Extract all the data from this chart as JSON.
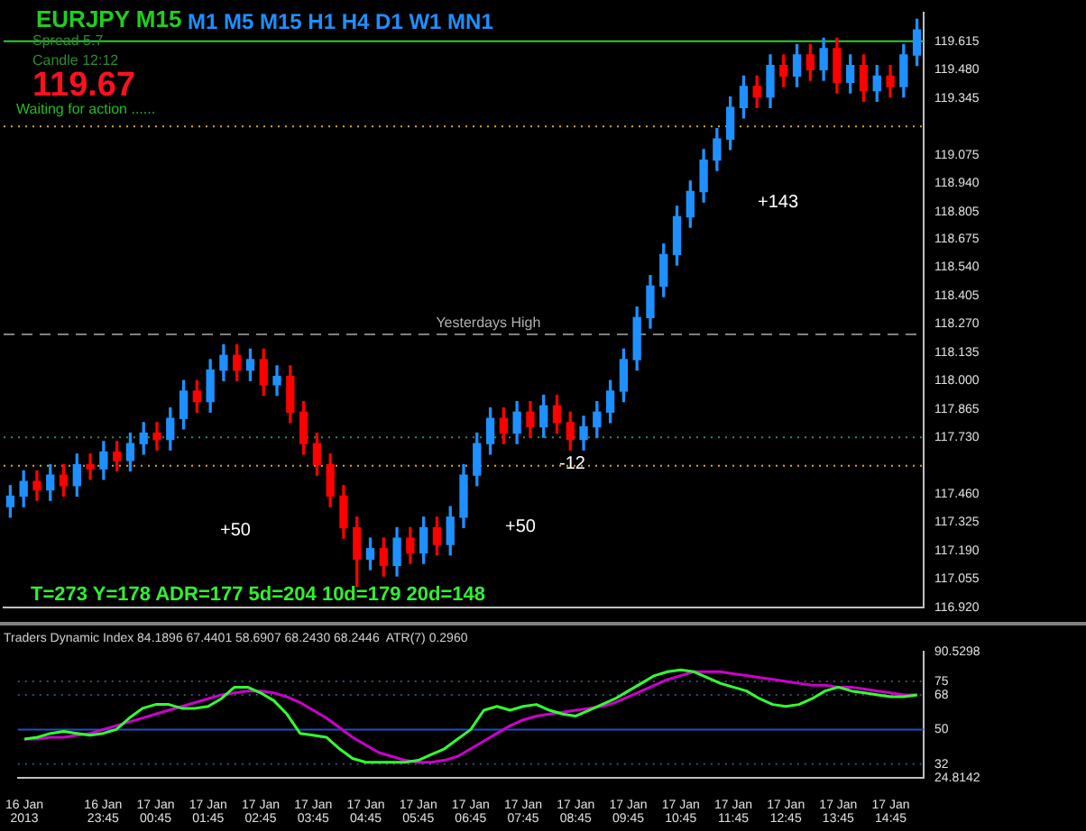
{
  "chart_data": [
    {
      "type": "candlestick",
      "title": "EURJPY  M15",
      "categories": [
        null,
        null,
        null,
        null,
        null,
        null,
        null,
        null,
        null,
        null,
        null,
        null,
        null,
        null,
        null,
        null,
        null,
        null,
        null,
        null,
        null,
        null,
        null,
        null,
        null,
        null,
        null,
        null,
        null,
        null,
        null,
        null,
        null,
        null,
        null,
        null,
        null,
        null,
        null,
        null,
        null,
        null,
        null,
        null,
        null,
        null,
        null,
        null,
        null,
        null,
        null,
        null,
        null,
        null,
        null,
        null,
        null,
        null,
        null,
        null,
        null,
        null,
        null,
        null,
        null,
        null,
        null,
        null,
        null
      ],
      "ohlc": [
        [
          117.4,
          117.5,
          117.35,
          117.45
        ],
        [
          117.45,
          117.57,
          117.4,
          117.52
        ],
        [
          117.52,
          117.57,
          117.43,
          117.48
        ],
        [
          117.48,
          117.6,
          117.43,
          117.55
        ],
        [
          117.55,
          117.6,
          117.45,
          117.5
        ],
        [
          117.5,
          117.65,
          117.45,
          117.6
        ],
        [
          117.6,
          117.65,
          117.53,
          117.58
        ],
        [
          117.58,
          117.71,
          117.53,
          117.66
        ],
        [
          117.66,
          117.71,
          117.57,
          117.62
        ],
        [
          117.62,
          117.75,
          117.57,
          117.7
        ],
        [
          117.7,
          117.8,
          117.65,
          117.75
        ],
        [
          117.75,
          117.8,
          117.67,
          117.72
        ],
        [
          117.72,
          117.87,
          117.67,
          117.82
        ],
        [
          117.82,
          118.0,
          117.77,
          117.95
        ],
        [
          117.95,
          118.0,
          117.85,
          117.9
        ],
        [
          117.9,
          118.1,
          117.85,
          118.05
        ],
        [
          118.05,
          118.17,
          118.0,
          118.12
        ],
        [
          118.12,
          118.17,
          118.0,
          118.05
        ],
        [
          118.05,
          118.15,
          118.0,
          118.1
        ],
        [
          118.1,
          118.15,
          117.93,
          117.98
        ],
        [
          117.98,
          118.07,
          117.93,
          118.02
        ],
        [
          118.02,
          118.07,
          117.8,
          117.85
        ],
        [
          117.85,
          117.9,
          117.65,
          117.7
        ],
        [
          117.7,
          117.75,
          117.55,
          117.6
        ],
        [
          117.6,
          117.65,
          117.4,
          117.45
        ],
        [
          117.45,
          117.5,
          117.25,
          117.3
        ],
        [
          117.3,
          117.35,
          117.02,
          117.15
        ],
        [
          117.15,
          117.25,
          117.1,
          117.2
        ],
        [
          117.2,
          117.25,
          117.07,
          117.12
        ],
        [
          117.12,
          117.3,
          117.07,
          117.25
        ],
        [
          117.25,
          117.3,
          117.13,
          117.18
        ],
        [
          117.18,
          117.35,
          117.13,
          117.3
        ],
        [
          117.3,
          117.35,
          117.17,
          117.22
        ],
        [
          117.22,
          117.4,
          117.17,
          117.35
        ],
        [
          117.35,
          117.6,
          117.3,
          117.55
        ],
        [
          117.55,
          117.75,
          117.5,
          117.7
        ],
        [
          117.7,
          117.87,
          117.65,
          117.82
        ],
        [
          117.82,
          117.87,
          117.7,
          117.75
        ],
        [
          117.75,
          117.9,
          117.7,
          117.85
        ],
        [
          117.85,
          117.9,
          117.73,
          117.78
        ],
        [
          117.78,
          117.93,
          117.73,
          117.88
        ],
        [
          117.88,
          117.93,
          117.75,
          117.8
        ],
        [
          117.8,
          117.85,
          117.67,
          117.72
        ],
        [
          117.72,
          117.83,
          117.67,
          117.78
        ],
        [
          117.78,
          117.9,
          117.73,
          117.85
        ],
        [
          117.85,
          118.0,
          117.8,
          117.95
        ],
        [
          117.95,
          118.15,
          117.9,
          118.1
        ],
        [
          118.1,
          118.35,
          118.05,
          118.3
        ],
        [
          118.3,
          118.5,
          118.25,
          118.45
        ],
        [
          118.45,
          118.65,
          118.4,
          118.6
        ],
        [
          118.6,
          118.83,
          118.55,
          118.78
        ],
        [
          118.78,
          118.95,
          118.73,
          118.9
        ],
        [
          118.9,
          119.1,
          118.85,
          119.05
        ],
        [
          119.05,
          119.2,
          119.0,
          119.15
        ],
        [
          119.15,
          119.35,
          119.1,
          119.3
        ],
        [
          119.3,
          119.45,
          119.25,
          119.4
        ],
        [
          119.4,
          119.45,
          119.3,
          119.35
        ],
        [
          119.35,
          119.55,
          119.3,
          119.5
        ],
        [
          119.5,
          119.55,
          119.4,
          119.45
        ],
        [
          119.45,
          119.6,
          119.4,
          119.55
        ],
        [
          119.55,
          119.6,
          119.43,
          119.48
        ],
        [
          119.48,
          119.63,
          119.43,
          119.58
        ],
        [
          119.58,
          119.63,
          119.37,
          119.42
        ],
        [
          119.42,
          119.55,
          119.37,
          119.5
        ],
        [
          119.5,
          119.55,
          119.33,
          119.38
        ],
        [
          119.38,
          119.5,
          119.33,
          119.45
        ],
        [
          119.45,
          119.5,
          119.35,
          119.4
        ],
        [
          119.4,
          119.6,
          119.35,
          119.55
        ],
        [
          119.55,
          119.72,
          119.5,
          119.67
        ]
      ],
      "colors": [
        "#1e90ff",
        "#1e90ff",
        "#ff0000",
        "#1e90ff",
        "#ff0000",
        "#1e90ff",
        "#ff0000",
        "#1e90ff",
        "#ff0000",
        "#1e90ff",
        "#1e90ff",
        "#ff0000",
        "#1e90ff",
        "#1e90ff",
        "#ff0000",
        "#1e90ff",
        "#1e90ff",
        "#ff0000",
        "#1e90ff",
        "#ff0000",
        "#1e90ff",
        "#ff0000",
        "#ff0000",
        "#ff0000",
        "#ff0000",
        "#ff0000",
        "#ff0000",
        "#1e90ff",
        "#ff0000",
        "#1e90ff",
        "#ff0000",
        "#1e90ff",
        "#ff0000",
        "#1e90ff",
        "#1e90ff",
        "#1e90ff",
        "#1e90ff",
        "#ff0000",
        "#1e90ff",
        "#ff0000",
        "#1e90ff",
        "#ff0000",
        "#ff0000",
        "#1e90ff",
        "#1e90ff",
        "#1e90ff",
        "#1e90ff",
        "#1e90ff",
        "#1e90ff",
        "#1e90ff",
        "#1e90ff",
        "#1e90ff",
        "#1e90ff",
        "#1e90ff",
        "#1e90ff",
        "#1e90ff",
        "#ff0000",
        "#1e90ff",
        "#ff0000",
        "#1e90ff",
        "#ff0000",
        "#1e90ff",
        "#ff0000",
        "#1e90ff",
        "#ff0000",
        "#1e90ff",
        "#ff0000",
        "#1e90ff",
        "#1e90ff"
      ],
      "ylim": [
        116.92,
        119.75
      ],
      "yticks": [
        {
          "value": 116.92,
          "label": "116.920"
        },
        {
          "value": 117.055,
          "label": "117.055"
        },
        {
          "value": 117.19,
          "label": "117.190"
        },
        {
          "value": 117.325,
          "label": "117.325"
        },
        {
          "value": 117.46,
          "label": "117.460"
        },
        {
          "value": 117.73,
          "label": "117.730"
        },
        {
          "value": 117.865,
          "label": "117.865"
        },
        {
          "value": 118.0,
          "label": "118.000"
        },
        {
          "value": 118.135,
          "label": "118.135"
        },
        {
          "value": 118.27,
          "label": "118.270"
        },
        {
          "value": 118.405,
          "label": "118.405"
        },
        {
          "value": 118.54,
          "label": "118.540"
        },
        {
          "value": 118.675,
          "label": "118.675"
        },
        {
          "value": 118.805,
          "label": "118.805"
        },
        {
          "value": 118.94,
          "label": "118.940"
        },
        {
          "value": 119.075,
          "label": "119.075"
        },
        {
          "value": 119.345,
          "label": "119.345"
        },
        {
          "value": 119.48,
          "label": "119.480"
        },
        {
          "value": 119.615,
          "label": "119.615"
        }
      ],
      "tick_labels": "y",
      "ref_lines": [
        {
          "axis": "y",
          "value": 119.615,
          "color": "#33cc33",
          "line_style": "solid"
        },
        {
          "axis": "y",
          "value": 119.21,
          "color": "#daa520",
          "line_style": "dotted"
        },
        {
          "axis": "y",
          "value": 118.22,
          "color": "#808080",
          "line_style": "dashed",
          "label": "Yesterdays High"
        },
        {
          "axis": "y",
          "value": 117.73,
          "color": "#2e8b57",
          "line_style": "dotted"
        },
        {
          "axis": "y",
          "value": 117.595,
          "color": "#daa520",
          "line_style": "dotted"
        }
      ],
      "annotations": [
        "M1 M5 M15 H1 H4 D1 W1 MN1",
        "Spread  5.7",
        "Candle  12:12",
        "119.67",
        "Waiting for action ......",
        "+143",
        "+50",
        "+50",
        "-12",
        "T=273  Y=178  ADR=177  5d=204  10d=179  20d=148"
      ]
    },
    {
      "type": "line",
      "title": "Traders Dynamic Index 84.1896 67.4401 58.6907 68.2430 68.2446  ATR(7) 0.2960",
      "categories": [
        "16 Jan 2013",
        null,
        null,
        null,
        null,
        null,
        "16 Jan 23:45",
        null,
        null,
        null,
        "17 Jan 00:45",
        null,
        null,
        null,
        "17 Jan 01:45",
        null,
        null,
        null,
        "17 Jan 02:45",
        null,
        null,
        null,
        "17 Jan 03:45",
        null,
        null,
        null,
        "17 Jan 04:45",
        null,
        null,
        null,
        "17 Jan 05:45",
        null,
        null,
        null,
        "17 Jan 06:45",
        null,
        null,
        null,
        "17 Jan 07:45",
        null,
        null,
        null,
        "17 Jan 08:45",
        null,
        null,
        null,
        "17 Jan 09:45",
        null,
        null,
        null,
        "17 Jan 10:45",
        null,
        null,
        null,
        "17 Jan 11:45",
        null,
        null,
        null,
        "17 Jan 12:45",
        null,
        null,
        null,
        "17 Jan 13:45",
        null,
        null,
        null,
        "17 Jan 14:45",
        null,
        null
      ],
      "series": [
        {
          "color": "#33ff33",
          "values": [
            45,
            46,
            48,
            49,
            48,
            47,
            48,
            50,
            56,
            61,
            63,
            63,
            61,
            61,
            62,
            66,
            72,
            72,
            69,
            65,
            58,
            48,
            47,
            46,
            40,
            35,
            33,
            33,
            33,
            33,
            34,
            37,
            40,
            45,
            50,
            60,
            62,
            60,
            62,
            63,
            60,
            58,
            57,
            60,
            63,
            66,
            70,
            74,
            78,
            80,
            81,
            80,
            77,
            74,
            72,
            70,
            66,
            63,
            62,
            63,
            66,
            70,
            72,
            70,
            69,
            68,
            67,
            67,
            68
          ]
        },
        {
          "color": "#cc00cc",
          "values": [
            45,
            45,
            46,
            46,
            47,
            48,
            50,
            52,
            54,
            56,
            58,
            60,
            62,
            64,
            66,
            68,
            69,
            70,
            70,
            69,
            67,
            64,
            60,
            56,
            51,
            46,
            42,
            38,
            36,
            34,
            33,
            33,
            34,
            36,
            40,
            44,
            48,
            52,
            55,
            57,
            58,
            59,
            60,
            61,
            62,
            64,
            67,
            70,
            73,
            76,
            78,
            80,
            80,
            80,
            79,
            78,
            77,
            76,
            75,
            74,
            73,
            73,
            72,
            72,
            71,
            70,
            69,
            68,
            68
          ]
        }
      ],
      "ylim": [
        24.8142,
        90.5298
      ],
      "yticks": [
        {
          "value": 24.8142,
          "label": "24.8142"
        },
        32,
        50,
        68,
        75,
        {
          "value": 90.5298,
          "label": "90.5298"
        }
      ],
      "ref_lines": [
        {
          "axis": "y",
          "value": 75,
          "color": "#2f4f6f",
          "line_style": "dotted"
        },
        {
          "axis": "y",
          "value": 68,
          "color": "#2f4f6f",
          "line_style": "dotted"
        },
        {
          "axis": "y",
          "value": 50,
          "color": "#1e50c8",
          "line_style": "solid"
        },
        {
          "axis": "y",
          "value": 32,
          "color": "#2f4f6f",
          "line_style": "dotted"
        }
      ],
      "marker": "none",
      "line_style": "solid",
      "legend": false
    }
  ]
}
